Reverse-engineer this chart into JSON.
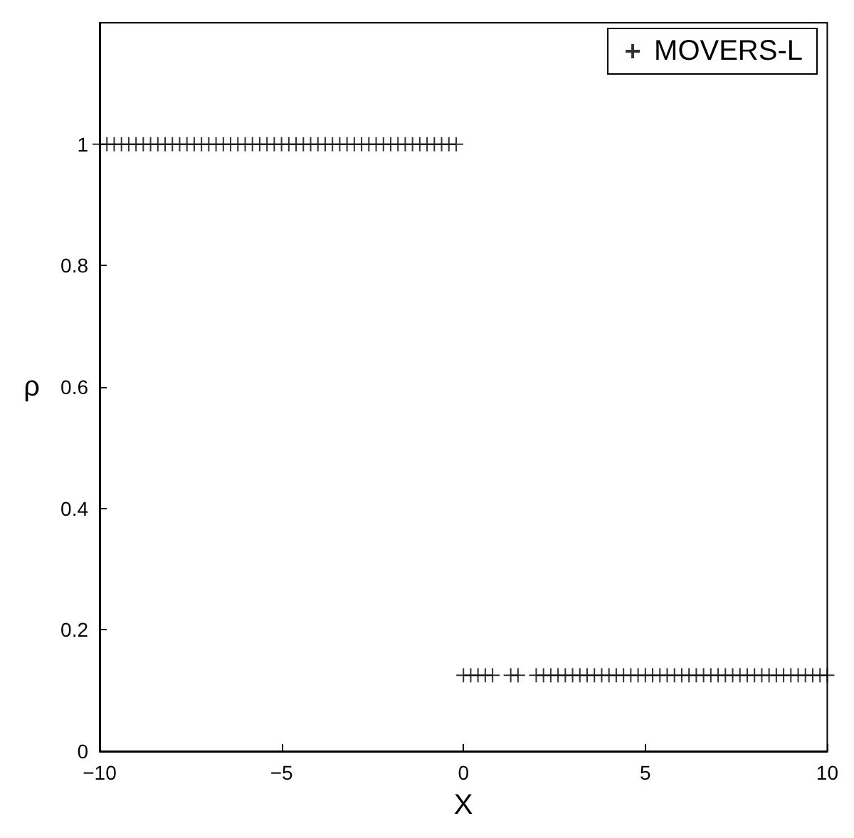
{
  "chart_data": {
    "type": "scatter",
    "xlabel": "X",
    "ylabel": "ρ",
    "xlim": [
      -10,
      10
    ],
    "xticks": [
      -10,
      -5,
      0,
      5,
      10
    ],
    "ylim": [
      0,
      1.2
    ],
    "yticks": [
      0,
      0.2,
      0.4,
      0.6,
      0.8,
      1
    ],
    "grid": false,
    "legend": "top right",
    "marker": "cross",
    "series": [
      {
        "name": "MOVERS-L",
        "color": "#000000",
        "x": [
          -10,
          -9.8,
          -9.6,
          -9.4,
          -9.2,
          -9,
          -8.8,
          -8.6,
          -8.4,
          -8.2,
          -8,
          -7.8,
          -7.6,
          -7.4,
          -7.2,
          -7,
          -6.8,
          -6.6,
          -6.4,
          -6.2,
          -6,
          -5.8,
          -5.6,
          -5.4,
          -5.2,
          -5,
          -4.8,
          -4.6,
          -4.4,
          -4.2,
          -4,
          -3.8,
          -3.6,
          -3.4,
          -3.2,
          -3,
          -2.8,
          -2.6,
          -2.4,
          -2.2,
          -2,
          -1.8,
          -1.6,
          -1.4,
          -1.2,
          -1,
          -0.8,
          -0.6,
          -0.4,
          -0.2,
          0,
          0.2,
          0.4,
          0.6,
          0.8,
          1.3,
          1.5,
          2,
          2.2,
          2.4,
          2.6,
          2.8,
          3,
          3.2,
          3.4,
          3.6,
          3.8,
          4,
          4.2,
          4.4,
          4.6,
          4.8,
          5,
          5.2,
          5.4,
          5.6,
          5.8,
          6,
          6.2,
          6.4,
          6.6,
          6.8,
          7,
          7.2,
          7.4,
          7.6,
          7.8,
          8,
          8.2,
          8.4,
          8.6,
          8.8,
          9,
          9.2,
          9.4,
          9.6,
          9.8,
          10
        ],
        "values": [
          1,
          1,
          1,
          1,
          1,
          1,
          1,
          1,
          1,
          1,
          1,
          1,
          1,
          1,
          1,
          1,
          1,
          1,
          1,
          1,
          1,
          1,
          1,
          1,
          1,
          1,
          1,
          1,
          1,
          1,
          1,
          1,
          1,
          1,
          1,
          1,
          1,
          1,
          1,
          1,
          1,
          1,
          1,
          1,
          1,
          1,
          1,
          1,
          1,
          1,
          0.125,
          0.125,
          0.125,
          0.125,
          0.125,
          0.125,
          0.125,
          0.125,
          0.125,
          0.125,
          0.125,
          0.125,
          0.125,
          0.125,
          0.125,
          0.125,
          0.125,
          0.125,
          0.125,
          0.125,
          0.125,
          0.125,
          0.125,
          0.125,
          0.125,
          0.125,
          0.125,
          0.125,
          0.125,
          0.125,
          0.125,
          0.125,
          0.125,
          0.125,
          0.125,
          0.125,
          0.125,
          0.125,
          0.125,
          0.125,
          0.125,
          0.125,
          0.125,
          0.125,
          0.125,
          0.125,
          0.125,
          0.125
        ]
      }
    ]
  }
}
